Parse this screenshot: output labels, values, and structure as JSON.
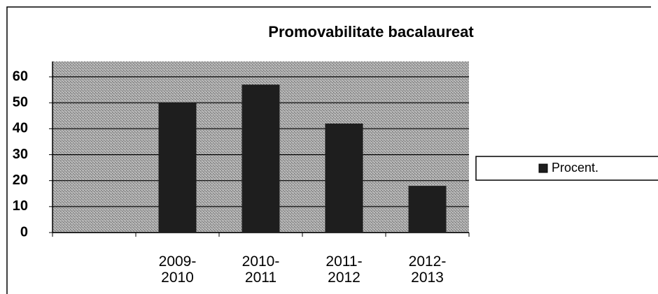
{
  "chart_data": {
    "type": "bar",
    "title": "Promovabilitate bacalaureat",
    "categories": [
      null,
      "2009-2010",
      "2010-2011",
      "2011-2012",
      "2012-2013"
    ],
    "series": [
      {
        "name": "Procent.",
        "color": "#1e1e1e",
        "values": [
          null,
          50,
          57,
          42,
          18
        ]
      }
    ],
    "ylim": [
      0,
      60
    ],
    "yticks": [
      0,
      10,
      20,
      30,
      40,
      50,
      60
    ],
    "grid": true,
    "legend": "right"
  }
}
